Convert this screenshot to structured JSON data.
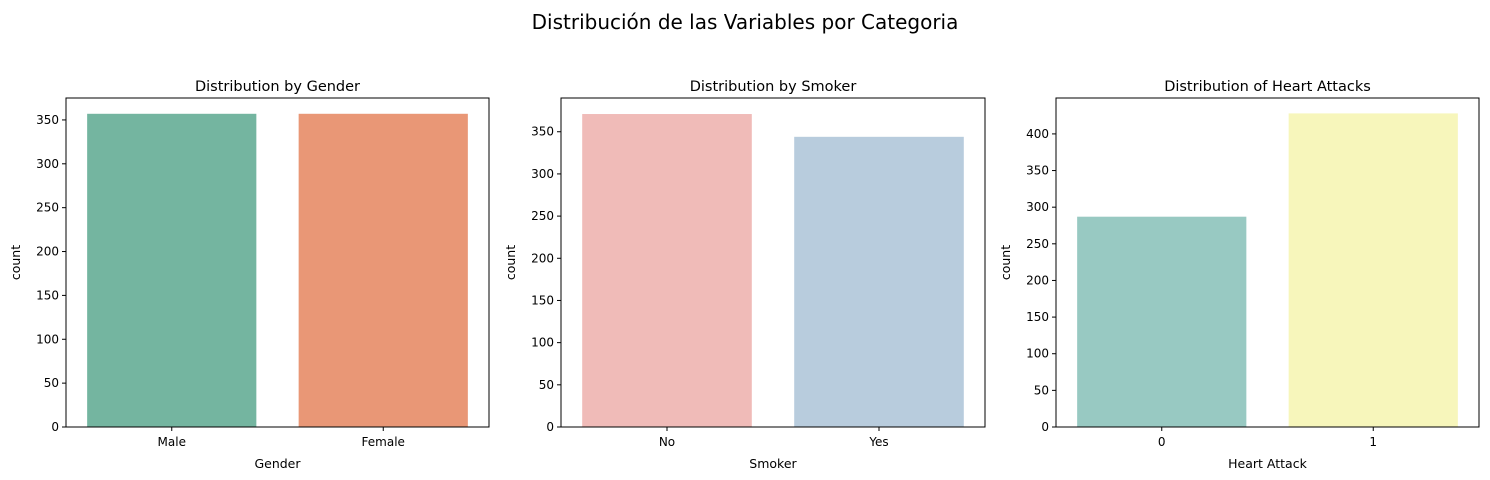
{
  "figure": {
    "suptitle": "Distribución de las Variables por Categoria"
  },
  "chart_data": [
    {
      "type": "bar",
      "title": "Distribution by Gender",
      "xlabel": "Gender",
      "ylabel": "count",
      "categories": [
        "Male",
        "Female"
      ],
      "values": [
        357,
        357
      ],
      "colors": [
        "#74b5a0",
        "#e99776"
      ],
      "ylim": [
        0,
        375
      ],
      "yticks": [
        0,
        50,
        100,
        150,
        200,
        250,
        300,
        350
      ],
      "grid": false
    },
    {
      "type": "bar",
      "title": "Distribution by Smoker",
      "xlabel": "Smoker",
      "ylabel": "count",
      "categories": [
        "No",
        "Yes"
      ],
      "values": [
        371,
        344
      ],
      "colors": [
        "#f0bbb8",
        "#b8ccdd"
      ],
      "ylim": [
        0,
        390
      ],
      "yticks": [
        0,
        50,
        100,
        150,
        200,
        250,
        300,
        350
      ],
      "grid": false
    },
    {
      "type": "bar",
      "title": "Distribution of Heart Attacks",
      "xlabel": "Heart Attack",
      "ylabel": "count",
      "categories": [
        "0",
        "1"
      ],
      "values": [
        287,
        428
      ],
      "colors": [
        "#98c9c2",
        "#f7f6bb"
      ],
      "ylim": [
        0,
        449
      ],
      "yticks": [
        0,
        50,
        100,
        150,
        200,
        250,
        300,
        350,
        400
      ],
      "grid": false
    }
  ]
}
